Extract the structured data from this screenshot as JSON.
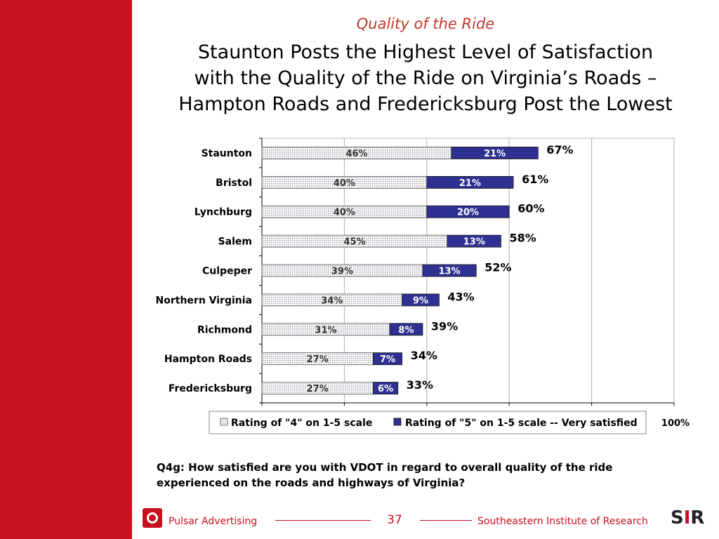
{
  "slide": {
    "subtitle": "Quality of the Ride",
    "title_lines": [
      "Staunton Posts the Highest Level of Satisfaction",
      "with the Quality of the Ride on Virginia’s Roads –",
      "Hampton Roads and Fredericksburg Post the Lowest"
    ],
    "question_lines": [
      "Q4g:  How satisfied are you with VDOT in regard to overall quality of the ride",
      "experienced on the roads and highways of Virginia?"
    ],
    "footer": {
      "left_text": "Pulsar Advertising",
      "page_number": "37",
      "right_text": "Southeastern Institute of Research",
      "left_logo": "pulsar-logo-icon",
      "right_logo": "sir-logo-icon",
      "right_logo_text": "SIR"
    },
    "colors": {
      "accent_red": "#c8101e",
      "series_4": "#d4d4dc",
      "series_5": "#2e3192"
    }
  },
  "chart_data": {
    "type": "bar",
    "orientation": "horizontal",
    "stacked": true,
    "categories": [
      "Staunton",
      "Bristol",
      "Lynchburg",
      "Salem",
      "Culpeper",
      "Northern Virginia",
      "Richmond",
      "Hampton Roads",
      "Fredericksburg"
    ],
    "series": [
      {
        "name": "Rating of \"4\" on 1-5 scale",
        "values": [
          46,
          40,
          40,
          45,
          39,
          34,
          31,
          27,
          27
        ],
        "labels": [
          "46%",
          "40%",
          "40%",
          "45%",
          "39%",
          "34%",
          "31%",
          "27%",
          "27%"
        ]
      },
      {
        "name": "Rating of \"5\" on 1-5 scale -- Very satisfied",
        "values": [
          21,
          21,
          20,
          13,
          13,
          9,
          8,
          7,
          6
        ],
        "labels": [
          "21%",
          "21%",
          "20%",
          "13%",
          "13%",
          "9%",
          "8%",
          "7%",
          "6%"
        ]
      }
    ],
    "totals": [
      67,
      61,
      60,
      58,
      52,
      43,
      39,
      34,
      33
    ],
    "total_labels": [
      "67%",
      "61%",
      "60%",
      "58%",
      "52%",
      "43%",
      "39%",
      "34%",
      "33%"
    ],
    "xlim": [
      0,
      100
    ],
    "x_tick_label": "100%",
    "grid": true,
    "legend_position": "bottom"
  }
}
